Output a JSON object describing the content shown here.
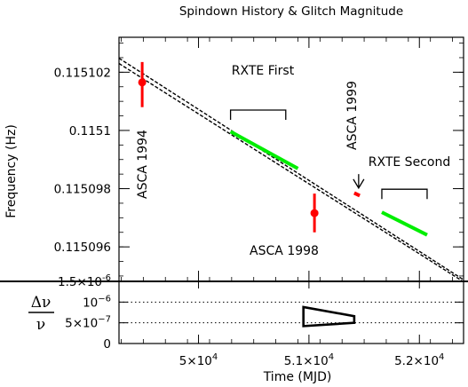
{
  "chart_data": [
    {
      "type": "line",
      "title": "Spindown History & Glitch Magnitude",
      "xlabel": "Time (MJD)",
      "ylabel": "Frequency (Hz)",
      "xlim": [
        49280,
        52400
      ],
      "ylim": [
        0.115094815,
        0.1151032
      ],
      "x_ticks": [
        {
          "value": 50000,
          "mant": "5",
          "exp": "4"
        },
        {
          "value": 51000,
          "mant": "5.1",
          "exp": "4"
        },
        {
          "value": 52000,
          "mant": "5.2",
          "exp": "4"
        }
      ],
      "y_ticks": [
        {
          "value": 0.115102,
          "label": "0.115102"
        },
        {
          "value": 0.1151,
          "label": "0.1151"
        },
        {
          "value": 0.115098,
          "label": "0.115098"
        },
        {
          "value": 0.115096,
          "label": "0.115096"
        }
      ],
      "y_extra_tick": {
        "mant": "1.5",
        "exp": "-6"
      },
      "spindown_lines": [
        {
          "x": [
            49280,
            52400
          ],
          "y": [
            0.11510248,
            0.11509487
          ]
        },
        {
          "x": [
            49280,
            52400
          ],
          "y": [
            0.1151023,
            0.1150948
          ]
        }
      ],
      "segments": [
        {
          "name": "RXTE First",
          "x": [
            50290,
            50900
          ],
          "y": [
            0.11509996,
            0.11509869
          ],
          "color": "#00ee00"
        },
        {
          "name": "RXTE Second",
          "x": [
            51660,
            52070
          ],
          "y": [
            0.11509719,
            0.11509641
          ],
          "color": "#00ee00"
        },
        {
          "name": "ASCA 1999",
          "x": [
            51410,
            51460
          ],
          "y": [
            0.11509785,
            0.11509776
          ],
          "color": "#ff0000"
        }
      ],
      "points": [
        {
          "label": "ASCA 1994",
          "x": 49490,
          "y": 0.11510165,
          "yerr_low": 0.1151008,
          "yerr_high": 0.11510235,
          "color": "#ff0000"
        },
        {
          "label": "ASCA 1998",
          "x": 51050,
          "y": 0.11509716,
          "yerr_low": 0.1150965,
          "yerr_high": 0.11509783,
          "color": "#ff0000"
        }
      ],
      "brackets": [
        {
          "label": "RXTE First",
          "x": [
            50290,
            50790
          ],
          "y": 0.1151007
        },
        {
          "label": "RXTE Second",
          "x": [
            51660,
            52070
          ],
          "y": 0.11509798
        }
      ],
      "annotations": {
        "rxte_first": "RXTE First",
        "rxte_second": "RXTE Second",
        "asca_1994": "ASCA 1994",
        "asca_1998": "ASCA 1998",
        "asca_1999": "ASCA 1999"
      },
      "arrow": {
        "x": 51450,
        "from_y": 0.1150985,
        "to_y": 0.11509802
      }
    },
    {
      "type": "line",
      "ylabel_num": "Δν",
      "ylabel_den": "ν",
      "xlim": [
        49280,
        52400
      ],
      "ylim": [
        0,
        1.5e-06
      ],
      "y_ticks": [
        {
          "value": 0,
          "mant": "0",
          "exp": ""
        },
        {
          "value": 5e-07,
          "mant": "5×10",
          "exp": "−7"
        },
        {
          "value": 1e-06,
          "mant": "10",
          "exp": "−6"
        }
      ],
      "dotted_levels": [
        5e-07,
        1e-06
      ],
      "glitch_box": {
        "x": [
          50950,
          51410
        ],
        "y_left": [
          4.2e-07,
          8.8e-07
        ],
        "y_right": [
          5e-07,
          6.6e-07
        ]
      }
    }
  ]
}
